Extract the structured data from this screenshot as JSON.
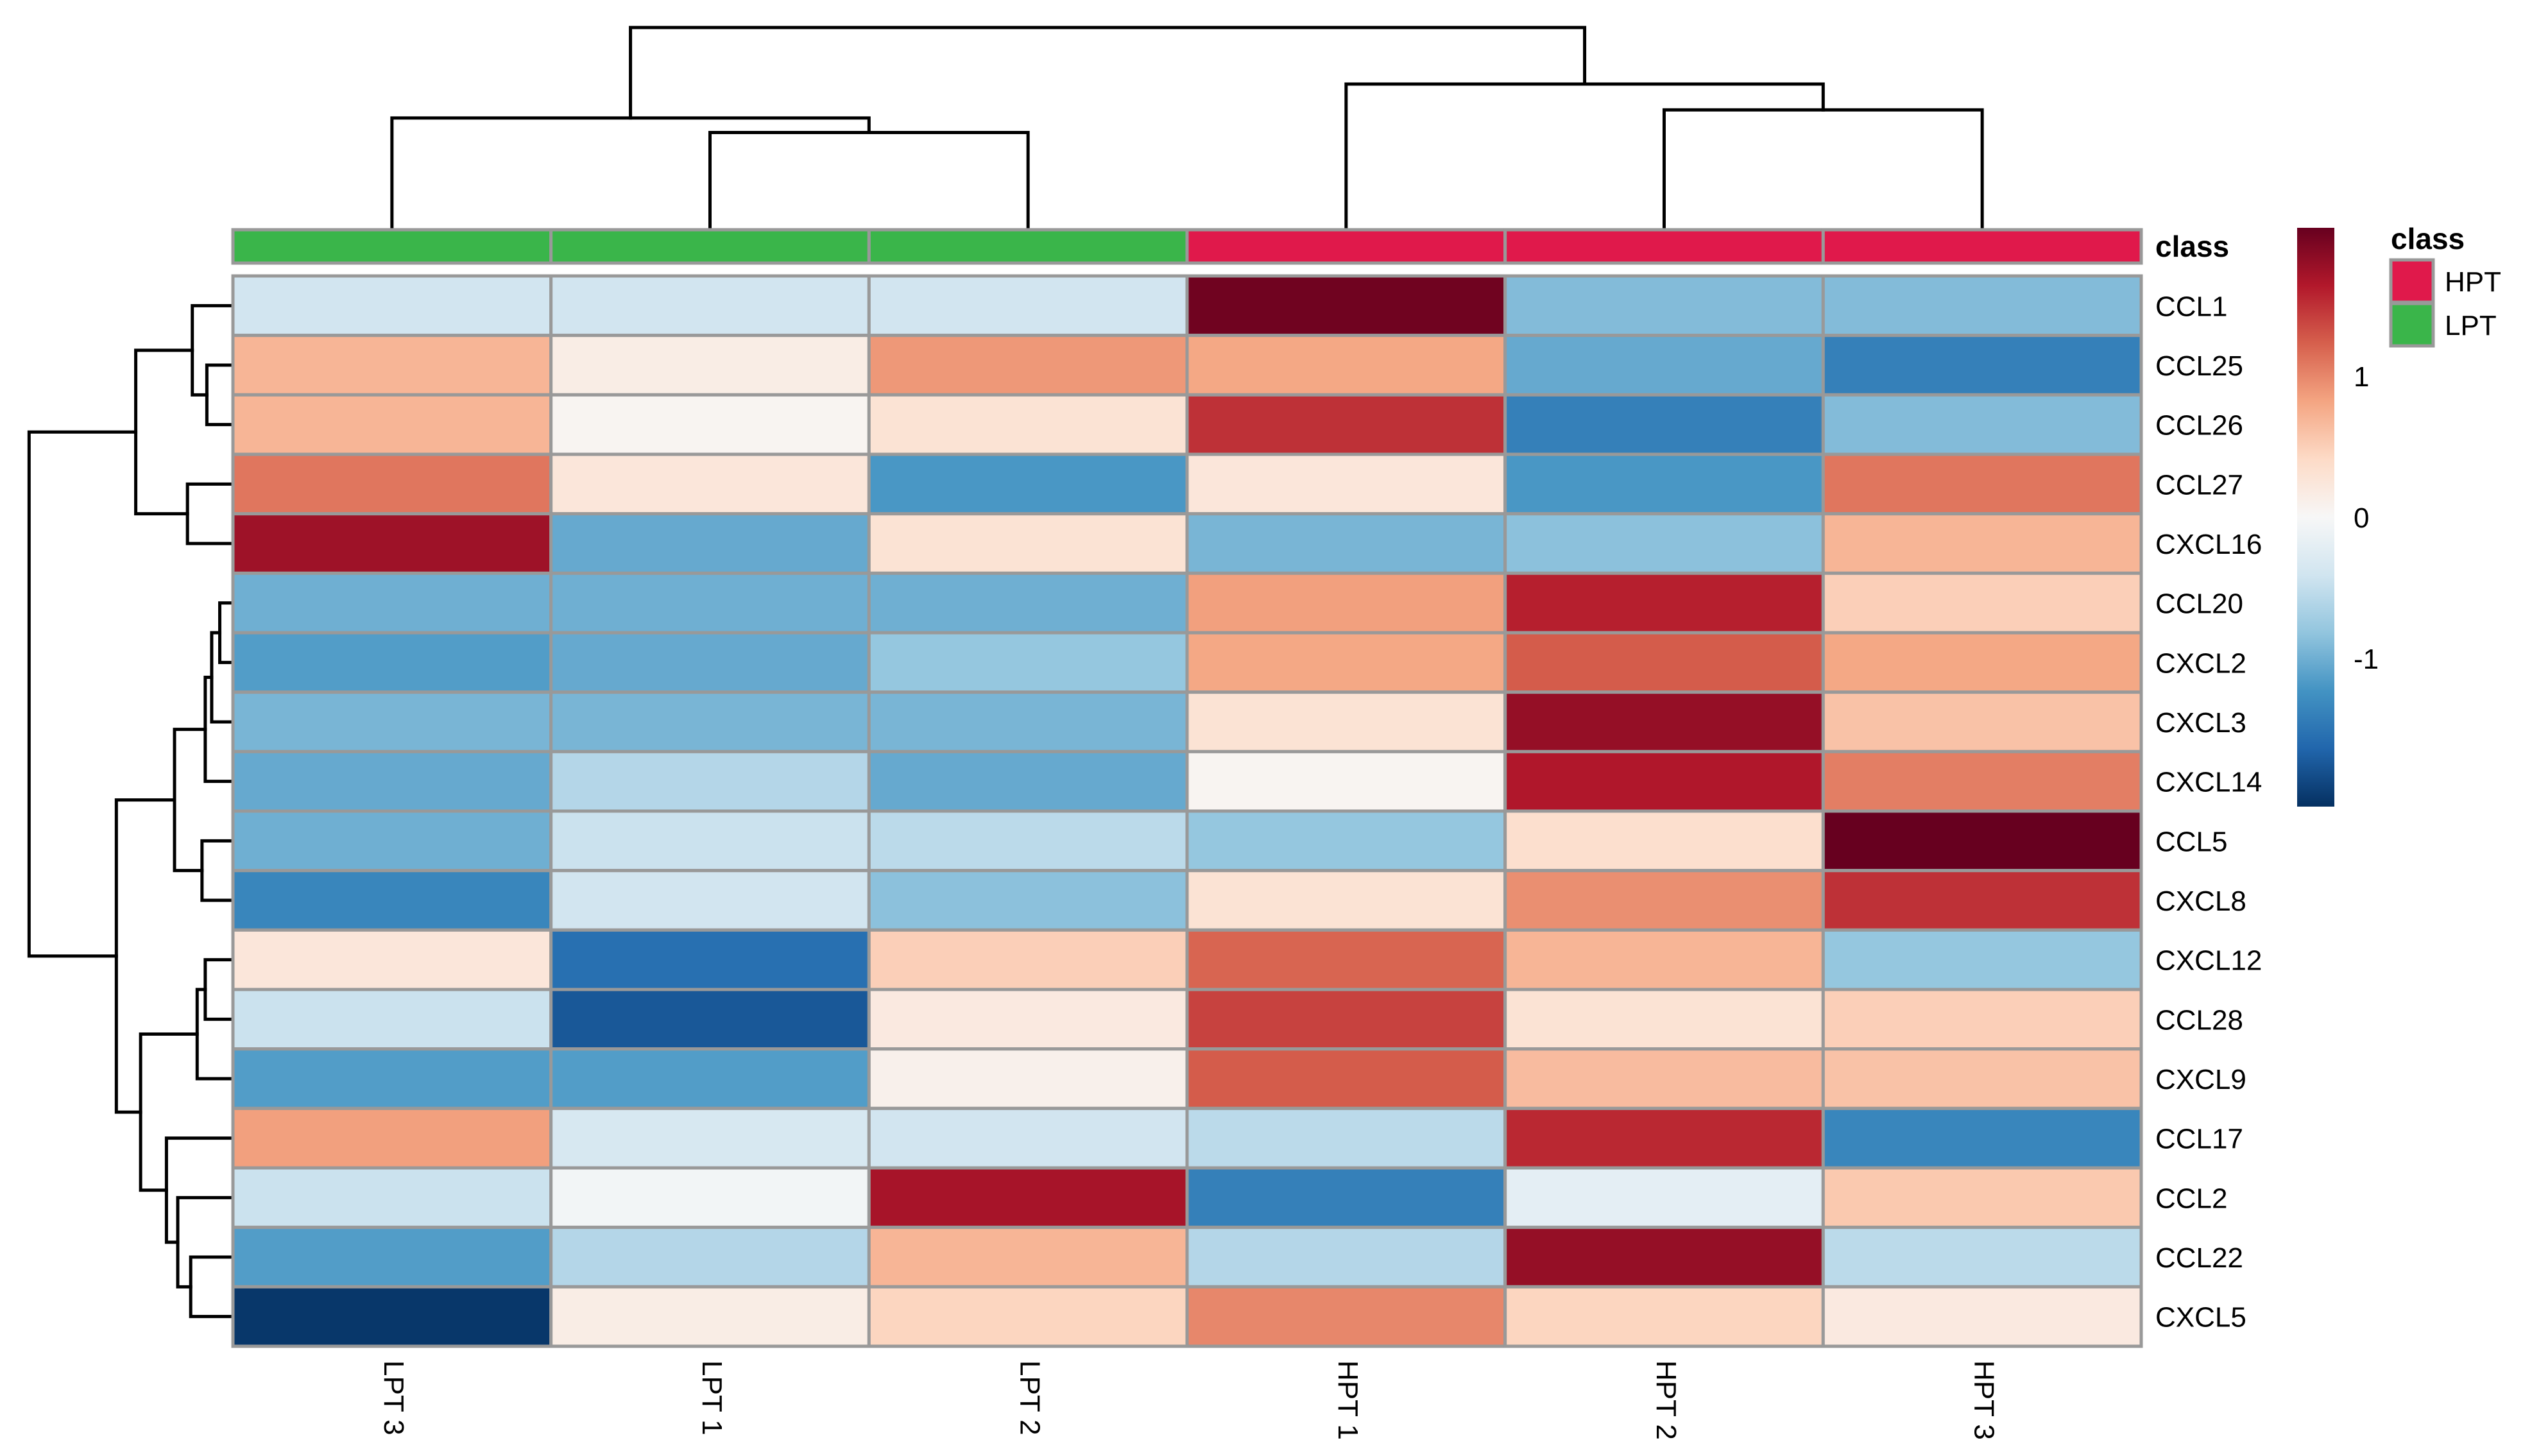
{
  "chart_data": {
    "type": "heatmap",
    "title": "",
    "xlabel": "",
    "ylabel": "",
    "columns": [
      "LPT 3",
      "LPT 1",
      "LPT 2",
      "HPT 1",
      "HPT 2",
      "HPT 3"
    ],
    "rows": [
      "CCL1",
      "CCL25",
      "CCL26",
      "CCL27",
      "CXCL16",
      "CCL20",
      "CXCL2",
      "CXCL3",
      "CXCL14",
      "CCL5",
      "CXCL8",
      "CXCL12",
      "CCL28",
      "CXCL9",
      "CCL17",
      "CCL2",
      "CCL22",
      "CXCL5"
    ],
    "values": [
      [
        -0.4,
        -0.4,
        -0.4,
        2.0,
        -0.9,
        -0.9
      ],
      [
        0.7,
        0.15,
        0.9,
        0.8,
        -1.05,
        -1.4
      ],
      [
        0.7,
        0.05,
        0.3,
        1.5,
        -1.4,
        -0.9
      ],
      [
        1.1,
        0.25,
        -1.2,
        0.25,
        -1.2,
        1.1
      ],
      [
        1.75,
        -1.05,
        0.3,
        -0.95,
        -0.85,
        0.7
      ],
      [
        -1.0,
        -1.0,
        -1.0,
        0.85,
        1.6,
        0.5
      ],
      [
        -1.15,
        -1.05,
        -0.8,
        0.8,
        1.25,
        0.8
      ],
      [
        -0.95,
        -0.95,
        -0.95,
        0.3,
        1.8,
        0.6
      ],
      [
        -1.05,
        -0.6,
        -1.05,
        0.05,
        1.65,
        1.05
      ],
      [
        -1.0,
        -0.45,
        -0.55,
        -0.8,
        0.35,
        2.05
      ],
      [
        -1.35,
        -0.4,
        -0.85,
        0.3,
        0.95,
        1.5
      ],
      [
        0.25,
        -1.55,
        0.5,
        1.2,
        0.7,
        -0.8
      ],
      [
        -0.45,
        -1.75,
        0.2,
        1.4,
        0.3,
        0.5
      ],
      [
        -1.15,
        -1.15,
        0.1,
        1.25,
        0.65,
        0.6
      ],
      [
        0.85,
        -0.35,
        -0.4,
        -0.55,
        1.55,
        -1.35
      ],
      [
        -0.45,
        -0.05,
        1.7,
        -1.4,
        -0.2,
        0.55
      ],
      [
        -1.15,
        -0.6,
        0.7,
        -0.6,
        1.8,
        -0.55
      ],
      [
        -2.0,
        0.15,
        0.45,
        1.0,
        0.45,
        0.2
      ]
    ],
    "annotation": {
      "name": "class",
      "column_classes": [
        "LPT",
        "LPT",
        "LPT",
        "HPT",
        "HPT",
        "HPT"
      ],
      "legend_title": "class",
      "legend_entries": [
        {
          "label": "HPT",
          "color": "#e0194b"
        },
        {
          "label": "LPT",
          "color": "#3ab54a"
        }
      ]
    },
    "colorbar": {
      "ticks": [
        1,
        0,
        -1
      ],
      "tick_labels": [
        "1",
        "0",
        "-1"
      ],
      "range": [
        -2.05,
        2.05
      ],
      "colors": [
        "#053061",
        "#2166ac",
        "#4393c3",
        "#92c5de",
        "#d1e5f0",
        "#f7f7f7",
        "#fddbc7",
        "#f4a582",
        "#d6604d",
        "#b2182b",
        "#67001f"
      ]
    },
    "grid": true,
    "cell_border_color": "#999999",
    "column_dendrogram": true,
    "row_dendrogram": true
  }
}
